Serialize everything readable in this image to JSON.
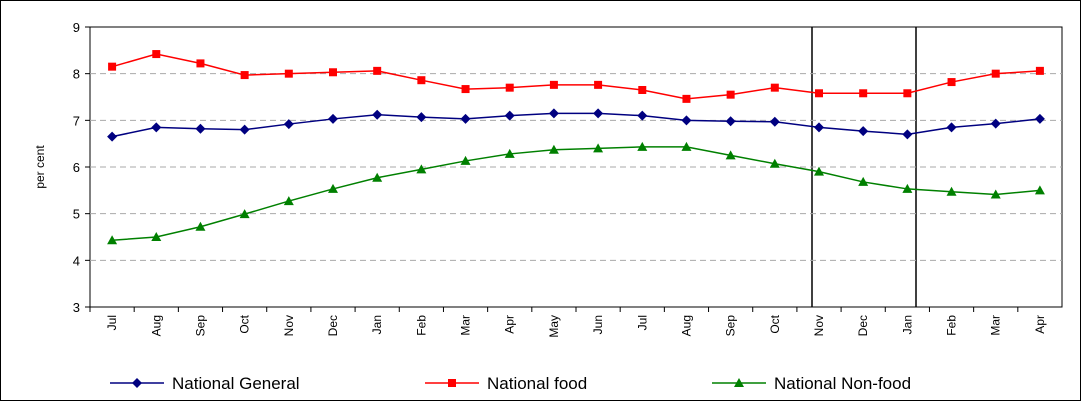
{
  "chart_data": {
    "type": "line",
    "y_label": "per cent",
    "categories": [
      "Jul",
      "Aug",
      "Sep",
      "Oct",
      "Nov",
      "Dec",
      "Jan",
      "Feb",
      "Mar",
      "Apr",
      "May",
      "Jun",
      "Jul",
      "Aug",
      "Sep",
      "Oct",
      "Nov",
      "Dec",
      "Jan",
      "Feb",
      "Mar",
      "Apr"
    ],
    "series": [
      {
        "name": "National General",
        "color": "#000080",
        "marker": "diamond",
        "values": [
          6.65,
          6.85,
          6.82,
          6.8,
          6.92,
          7.03,
          7.12,
          7.07,
          7.03,
          7.1,
          7.15,
          7.15,
          7.1,
          7.0,
          6.98,
          6.97,
          6.85,
          6.77,
          6.7,
          6.85,
          6.93,
          7.03
        ]
      },
      {
        "name": "National food",
        "color": "#ff0000",
        "marker": "square",
        "values": [
          8.15,
          8.42,
          8.22,
          7.97,
          8.0,
          8.03,
          8.06,
          7.86,
          7.67,
          7.7,
          7.76,
          7.76,
          7.65,
          7.46,
          7.55,
          7.7,
          7.58,
          7.58,
          7.58,
          7.82,
          8.0,
          8.06
        ]
      },
      {
        "name": "National Non-food",
        "color": "#008000",
        "marker": "triangle",
        "values": [
          4.43,
          4.5,
          4.72,
          4.99,
          5.27,
          5.53,
          5.77,
          5.95,
          6.13,
          6.28,
          6.37,
          6.4,
          6.43,
          6.43,
          6.25,
          6.07,
          5.9,
          5.68,
          5.53,
          5.47,
          5.41,
          5.5
        ]
      }
    ],
    "ylim": [
      3,
      9
    ],
    "yticks": [
      3,
      4,
      5,
      6,
      7,
      8,
      9
    ],
    "grid": true,
    "legend": "bottom"
  }
}
